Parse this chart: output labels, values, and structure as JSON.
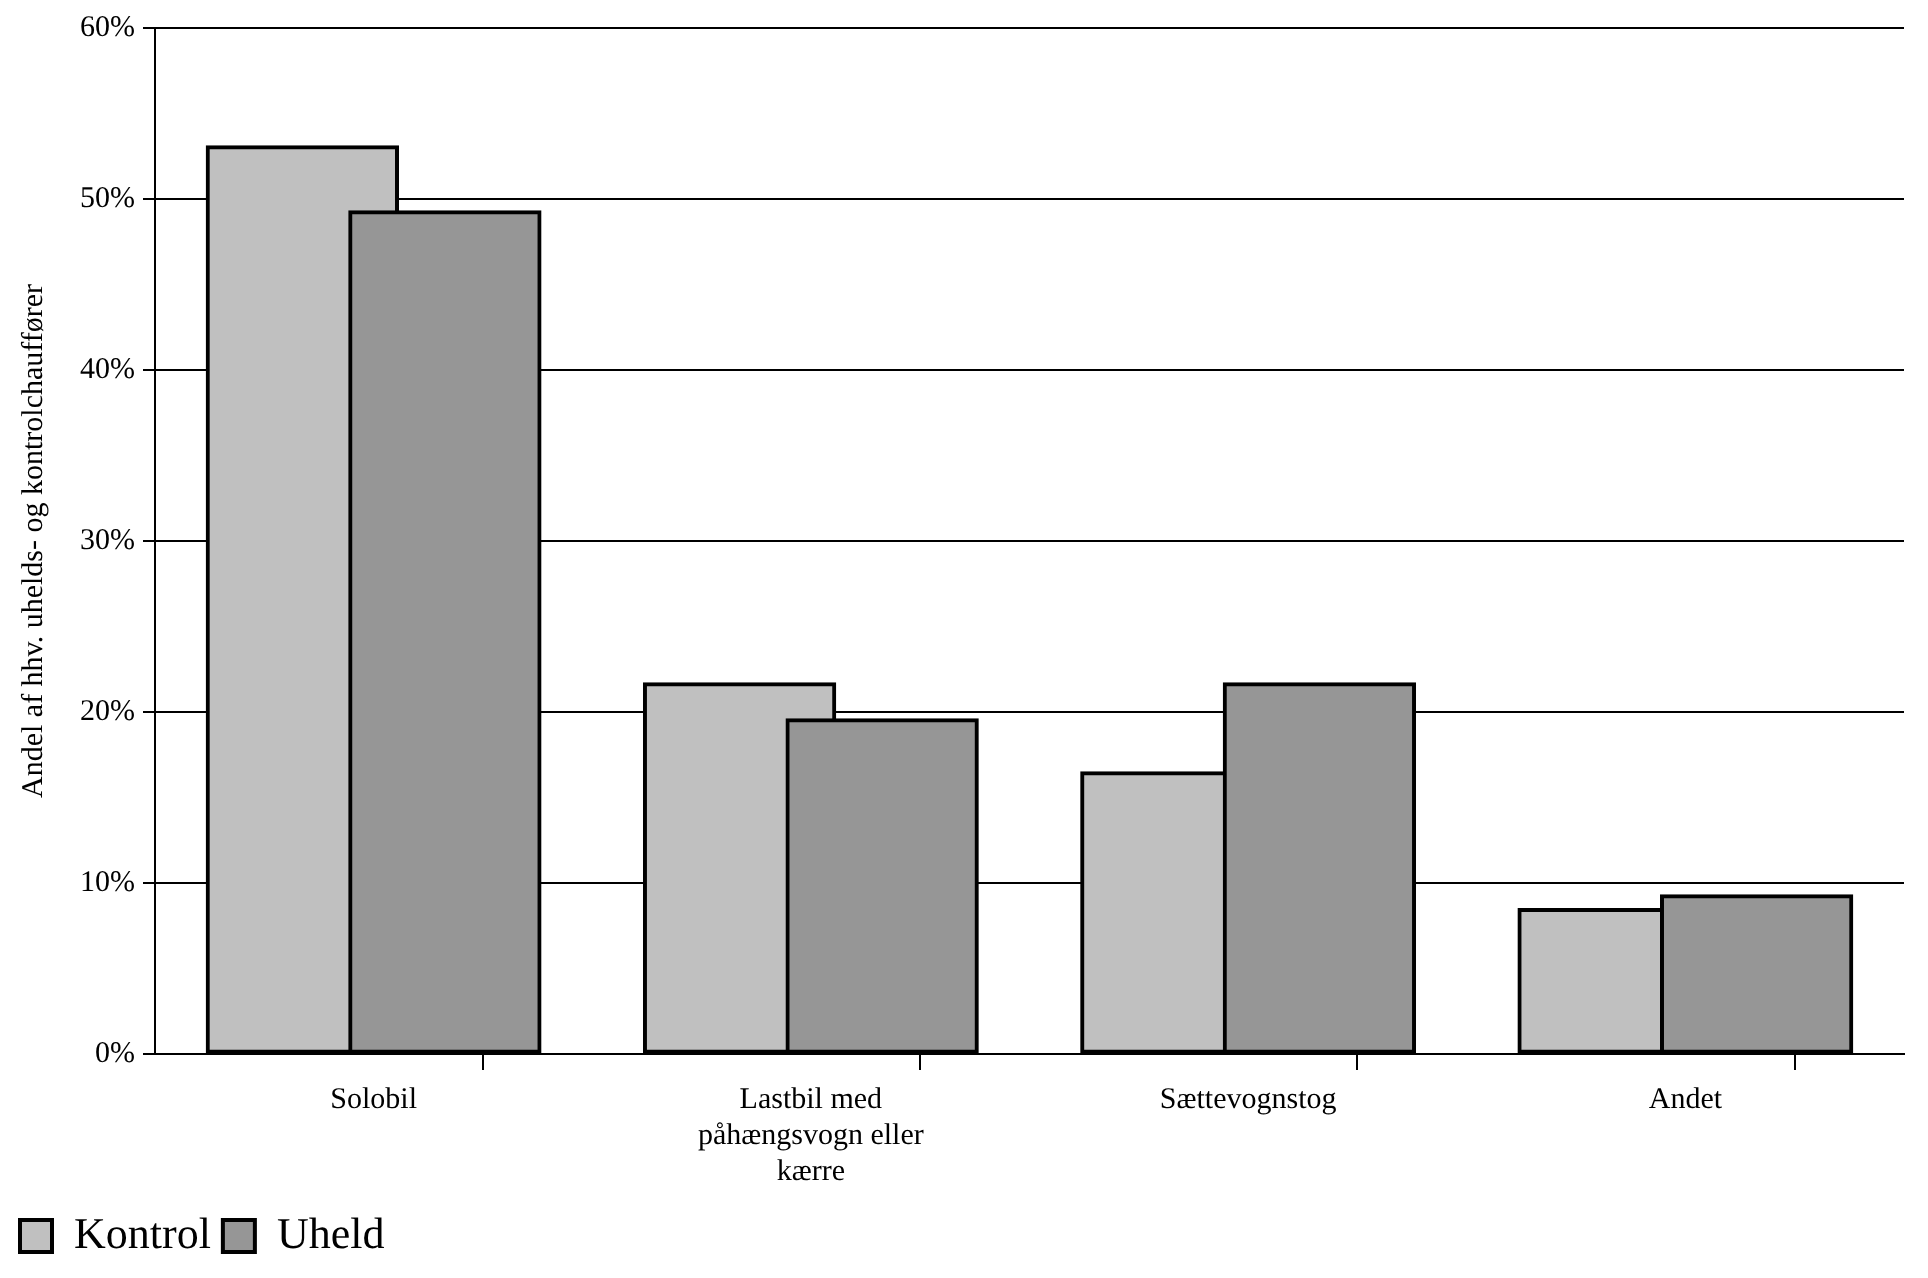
{
  "chart_data": {
    "type": "bar",
    "ylabel": "Andel af hhv. uhelds- og kontrolchauffører",
    "categories": [
      "Solobil",
      "Lastbil med påhængsvogn eller kærre",
      "Sættevognstog",
      "Andet"
    ],
    "series": [
      {
        "name": "Kontrol",
        "color": "#c0c0c0",
        "values": [
          53.1,
          21.7,
          16.5,
          8.5
        ]
      },
      {
        "name": "Uheld",
        "color": "#969696",
        "values": [
          49.3,
          19.6,
          21.7,
          9.3
        ]
      }
    ],
    "ylim": [
      0,
      60
    ],
    "yticks": [
      {
        "value": 0,
        "label": "0%"
      },
      {
        "value": 10,
        "label": "10%"
      },
      {
        "value": 20,
        "label": "20%"
      },
      {
        "value": 30,
        "label": "30%"
      },
      {
        "value": 40,
        "label": "40%"
      },
      {
        "value": 50,
        "label": "50%"
      },
      {
        "value": 60,
        "label": "60%"
      }
    ],
    "grid": "y",
    "legend": "bottom left"
  }
}
